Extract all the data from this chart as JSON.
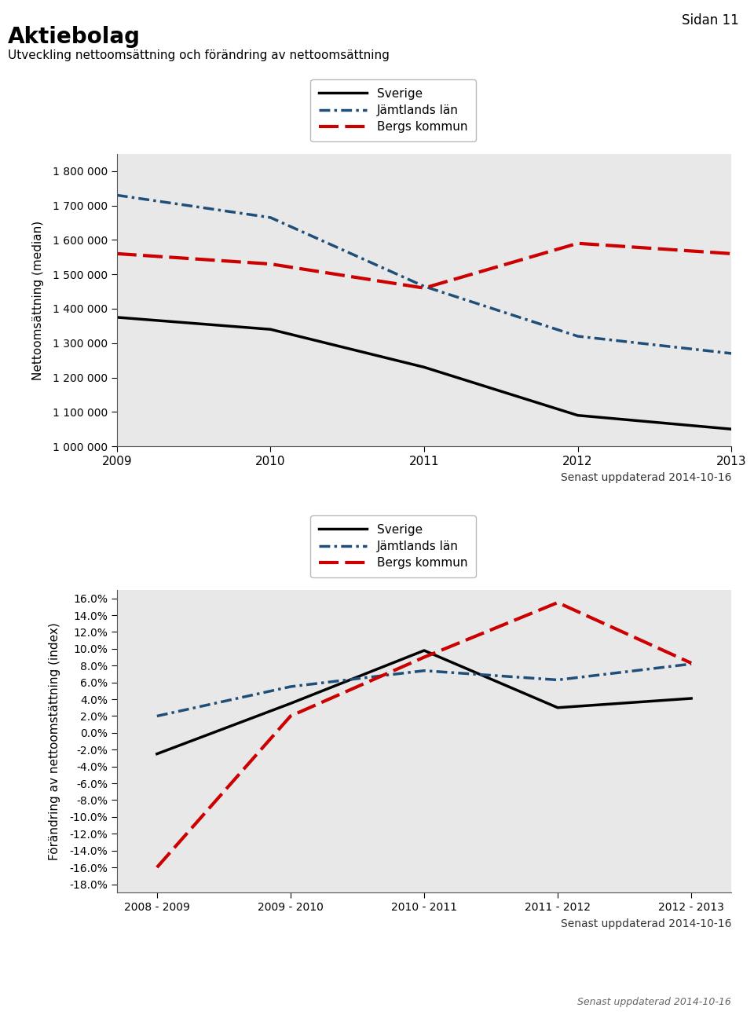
{
  "page_label": "Sidan 11",
  "main_title": "Aktiebolag",
  "subtitle": "Utveckling nettoomsättning och förändring av nettoomsättning",
  "updated_text": "Senast uppdaterad 2014-10-16",
  "chart1": {
    "years": [
      2009,
      2010,
      2011,
      2012,
      2013
    ],
    "sverige": [
      1375000,
      1340000,
      1230000,
      1090000,
      1050000
    ],
    "jamtland": [
      1730000,
      1665000,
      1465000,
      1320000,
      1270000
    ],
    "bergs": [
      1560000,
      1530000,
      1460000,
      1590000,
      1560000
    ],
    "ylabel": "Nettoomsättning (median)",
    "ylim": [
      1000000,
      1850000
    ],
    "yticks": [
      1000000,
      1100000,
      1200000,
      1300000,
      1400000,
      1500000,
      1600000,
      1700000,
      1800000
    ]
  },
  "chart2": {
    "years": [
      "2008 - 2009",
      "2009 - 2010",
      "2010 - 2011",
      "2011 - 2012",
      "2012 - 2013"
    ],
    "sverige": [
      -0.025,
      0.035,
      0.098,
      0.03,
      0.041
    ],
    "jamtland": [
      0.02,
      0.055,
      0.074,
      0.063,
      0.082
    ],
    "bergs": [
      -0.16,
      0.02,
      0.09,
      0.155,
      0.083
    ],
    "ylabel": "Förändring av nettoomstättning (index)",
    "ylim": [
      -0.19,
      0.17
    ],
    "yticks": [
      -0.18,
      -0.16,
      -0.14,
      -0.12,
      -0.1,
      -0.08,
      -0.06,
      -0.04,
      -0.02,
      0.0,
      0.02,
      0.04,
      0.06,
      0.08,
      0.1,
      0.12,
      0.14,
      0.16
    ]
  },
  "legend_labels": [
    "Sverige",
    "Jämtlands län",
    "Bergs kommun"
  ],
  "colors": {
    "sverige": "#000000",
    "jamtland": "#1f4e79",
    "bergs": "#cc0000"
  },
  "plot_bg_color": "#e8e8e8"
}
